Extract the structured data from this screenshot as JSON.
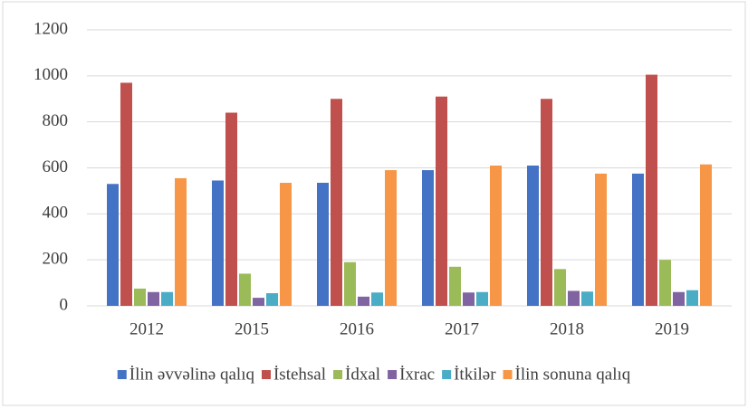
{
  "chart_data": {
    "type": "bar",
    "categories": [
      "2012",
      "2015",
      "2016",
      "2017",
      "2018",
      "2019"
    ],
    "series": [
      {
        "name": "İlin əvvəlinə qalıq",
        "color": "#4472c4",
        "values": [
          530,
          545,
          535,
          590,
          610,
          575
        ]
      },
      {
        "name": "İstehsal",
        "color": "#c0504d",
        "values": [
          970,
          840,
          900,
          910,
          900,
          1005
        ]
      },
      {
        "name": "İdxal",
        "color": "#9bbb59",
        "values": [
          75,
          140,
          190,
          170,
          160,
          200
        ]
      },
      {
        "name": "İxrac",
        "color": "#8064a2",
        "values": [
          60,
          35,
          40,
          58,
          65,
          60
        ]
      },
      {
        "name": "İtkilər",
        "color": "#4bacc6",
        "values": [
          60,
          55,
          58,
          60,
          62,
          68
        ]
      },
      {
        "name": "İlin sonuna qalıq",
        "color": "#f79646",
        "values": [
          555,
          535,
          590,
          610,
          575,
          615
        ]
      }
    ],
    "ylim": [
      0,
      1200
    ],
    "yticks": [
      0,
      200,
      400,
      600,
      800,
      1000,
      1200
    ],
    "grid": true,
    "legend": "bottom"
  }
}
